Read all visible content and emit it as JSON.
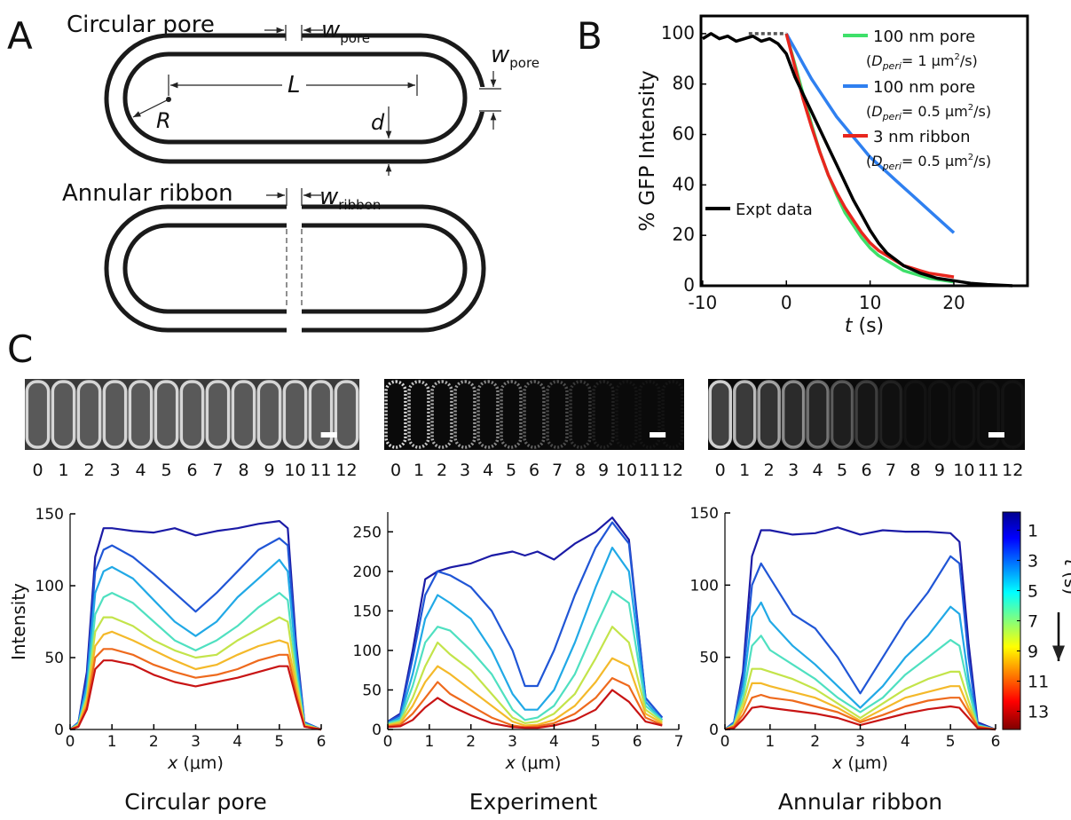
{
  "panels": [
    "A",
    "B",
    "C"
  ],
  "diagram": {
    "circular_title": "Circular pore",
    "ribbon_title": "Annular ribbon",
    "w": "w",
    "pore": "pore",
    "ribbon": "ribbon",
    "L": "L",
    "R": "R",
    "d": "d"
  },
  "image_strips": [
    {
      "labels": [
        "0",
        "1",
        "2",
        "3",
        "4",
        "5",
        "6",
        "7",
        "8",
        "9",
        "10",
        "11",
        "12"
      ]
    },
    {
      "labels": [
        "0",
        "1",
        "2",
        "3",
        "4",
        "5",
        "6",
        "7",
        "8",
        "9",
        "10",
        "11",
        "12"
      ]
    },
    {
      "labels": [
        "0",
        "1",
        "2",
        "3",
        "4",
        "5",
        "6",
        "7",
        "8",
        "9",
        "10",
        "11",
        "12"
      ]
    }
  ],
  "chart_data": [
    {
      "type": "line",
      "ylabel": "% GFP Intensity",
      "xlabel": [
        "t",
        " (s)"
      ],
      "xlim": [
        -10.2,
        28.8
      ],
      "ylim": [
        0,
        107
      ],
      "xticks": [
        -10,
        0,
        10,
        20
      ],
      "yticks": [
        0,
        20,
        40,
        60,
        80,
        100
      ],
      "series": [
        {
          "name": "100 nm pore",
          "note": [
            "(",
            "D",
            "peri",
            "= 1 μm",
            "2",
            "/s)"
          ],
          "color": "#3ee06a",
          "x": [
            0,
            1,
            2,
            3,
            4,
            5,
            6,
            7,
            8,
            9,
            10,
            11,
            12,
            13,
            14,
            15,
            16,
            17,
            18,
            19,
            20
          ],
          "values": [
            100,
            88,
            76,
            64,
            53,
            44,
            36,
            29,
            24,
            19,
            15,
            12,
            10,
            8,
            6,
            5,
            4,
            3,
            2.5,
            2,
            1.5
          ]
        },
        {
          "name": "100 nm pore",
          "note": [
            "(",
            "D",
            "peri",
            "= 0.5 μm",
            "2",
            "/s)"
          ],
          "color": "#2f80f0",
          "x": [
            0,
            1,
            2,
            3,
            4,
            5,
            6,
            7,
            8,
            9,
            10,
            11,
            12,
            13,
            14,
            15,
            16,
            17,
            18,
            19,
            20
          ],
          "values": [
            100,
            94,
            88,
            82,
            77,
            72,
            67,
            63,
            59,
            55,
            51,
            48,
            45,
            42,
            39,
            36,
            33,
            30,
            27,
            24,
            21
          ]
        },
        {
          "name": "3 nm ribbon",
          "note": [
            "(",
            "D",
            "peri",
            "= 0.5 μm",
            "2",
            "/s)"
          ],
          "color": "#e8261e",
          "x": [
            0,
            1,
            2,
            3,
            4,
            5,
            6,
            7,
            8,
            9,
            10,
            11,
            12,
            13,
            14,
            15,
            16,
            17,
            18,
            19,
            20
          ],
          "values": [
            100,
            87,
            74,
            63,
            53,
            44,
            37,
            31,
            26,
            21,
            17,
            14,
            12,
            10,
            8,
            7,
            6,
            5,
            4.5,
            4,
            3.5
          ]
        },
        {
          "name": "Expt data",
          "color": "#000000",
          "x": [
            -10,
            -9,
            -8,
            -7,
            -6,
            -5,
            -4,
            -3,
            -2,
            -1,
            0,
            1,
            2,
            3,
            4,
            5,
            6,
            7,
            8,
            9,
            10,
            11,
            12,
            14,
            16,
            18,
            20,
            22,
            24,
            27
          ],
          "values": [
            98,
            100,
            98,
            99,
            97,
            98,
            99,
            97,
            98,
            96,
            92,
            83,
            76,
            69,
            62,
            55,
            48,
            41,
            34,
            28,
            22,
            17,
            13,
            8,
            5,
            3,
            2,
            1,
            0.5,
            0
          ]
        },
        {
          "color": "#555555",
          "dash": true,
          "x": [
            -4.5,
            0
          ],
          "values": [
            100,
            100
          ]
        }
      ]
    },
    {
      "type": "line",
      "ylabel": "Intensity",
      "xlabel": [
        "x",
        " (μm)"
      ],
      "caption": "Circular pore",
      "xlim": [
        0,
        6
      ],
      "ylim": [
        0,
        150
      ],
      "xticks": [
        0,
        1,
        2,
        3,
        4,
        5,
        6
      ],
      "yticks": [
        0,
        50,
        100,
        150
      ],
      "x": [
        0,
        0.2,
        0.4,
        0.6,
        0.8,
        1,
        1.5,
        2,
        2.5,
        3,
        3.5,
        4,
        4.5,
        5,
        5.2,
        5.4,
        5.6,
        6
      ],
      "series": [
        {
          "color": "#1b1ba6",
          "values": [
            0,
            5,
            40,
            120,
            140,
            140,
            138,
            137,
            140,
            135,
            138,
            140,
            143,
            145,
            140,
            60,
            5,
            0
          ]
        },
        {
          "color": "#2056d6",
          "values": [
            0,
            5,
            35,
            110,
            125,
            128,
            120,
            108,
            95,
            82,
            95,
            110,
            125,
            133,
            128,
            55,
            5,
            0
          ]
        },
        {
          "color": "#21a9e6",
          "values": [
            0,
            4,
            30,
            95,
            110,
            113,
            105,
            90,
            75,
            65,
            75,
            92,
            105,
            118,
            110,
            48,
            4,
            0
          ]
        },
        {
          "color": "#4fe0c0",
          "values": [
            0,
            4,
            25,
            80,
            92,
            95,
            88,
            75,
            62,
            55,
            62,
            72,
            85,
            95,
            90,
            40,
            4,
            0
          ]
        },
        {
          "color": "#c3e44a",
          "values": [
            0,
            3,
            22,
            68,
            78,
            78,
            72,
            62,
            55,
            50,
            52,
            62,
            70,
            78,
            75,
            35,
            3,
            0
          ]
        },
        {
          "color": "#f4b92a",
          "values": [
            0,
            3,
            20,
            58,
            66,
            68,
            62,
            55,
            48,
            42,
            45,
            52,
            58,
            62,
            60,
            30,
            3,
            0
          ]
        },
        {
          "color": "#ee6a1d",
          "values": [
            0,
            2,
            16,
            50,
            56,
            56,
            52,
            45,
            40,
            36,
            38,
            42,
            48,
            52,
            52,
            25,
            2,
            0
          ]
        },
        {
          "color": "#c81414",
          "values": [
            0,
            2,
            14,
            42,
            48,
            48,
            45,
            38,
            33,
            30,
            33,
            36,
            40,
            44,
            44,
            22,
            2,
            0
          ]
        }
      ]
    },
    {
      "type": "line",
      "xlabel": [
        "x",
        " (μm)"
      ],
      "caption": "Experiment",
      "xlim": [
        0,
        7
      ],
      "ylim": [
        0,
        275
      ],
      "xticks": [
        0,
        1,
        2,
        3,
        4,
        5,
        6,
        7
      ],
      "yticks": [
        0,
        50,
        100,
        150,
        200,
        250
      ],
      "x": [
        0,
        0.3,
        0.6,
        0.9,
        1.2,
        1.5,
        2,
        2.5,
        3,
        3.3,
        3.6,
        4,
        4.5,
        5,
        5.4,
        5.8,
        6.2,
        6.6
      ],
      "series": [
        {
          "color": "#1b1ba6",
          "values": [
            10,
            20,
            100,
            190,
            200,
            205,
            210,
            220,
            225,
            220,
            225,
            215,
            235,
            250,
            268,
            240,
            40,
            15
          ]
        },
        {
          "color": "#2056d6",
          "values": [
            10,
            18,
            90,
            170,
            200,
            195,
            180,
            150,
            100,
            55,
            55,
            100,
            170,
            230,
            262,
            235,
            40,
            15
          ]
        },
        {
          "color": "#21a9e6",
          "values": [
            8,
            15,
            70,
            140,
            170,
            160,
            140,
            100,
            45,
            25,
            25,
            50,
            110,
            180,
            230,
            200,
            35,
            12
          ]
        },
        {
          "color": "#4fe0c0",
          "values": [
            8,
            12,
            55,
            110,
            130,
            125,
            100,
            70,
            25,
            12,
            15,
            30,
            70,
            130,
            175,
            160,
            30,
            12
          ]
        },
        {
          "color": "#c3e44a",
          "values": [
            6,
            10,
            40,
            80,
            110,
            95,
            75,
            45,
            15,
            8,
            10,
            20,
            45,
            90,
            130,
            110,
            25,
            10
          ]
        },
        {
          "color": "#f4b92a",
          "values": [
            5,
            8,
            30,
            60,
            80,
            70,
            50,
            30,
            10,
            5,
            6,
            12,
            30,
            60,
            90,
            80,
            20,
            8
          ]
        },
        {
          "color": "#ee6a1d",
          "values": [
            4,
            6,
            20,
            40,
            60,
            45,
            30,
            15,
            5,
            3,
            4,
            8,
            20,
            40,
            65,
            55,
            15,
            6
          ]
        },
        {
          "color": "#c81414",
          "values": [
            3,
            4,
            12,
            28,
            40,
            30,
            18,
            8,
            3,
            2,
            2,
            5,
            12,
            25,
            50,
            35,
            10,
            5
          ]
        }
      ]
    },
    {
      "type": "line",
      "xlabel": [
        "x",
        " (μm)"
      ],
      "caption": "Annular ribbon",
      "xlim": [
        0,
        6
      ],
      "ylim": [
        0,
        150
      ],
      "xticks": [
        0,
        1,
        2,
        3,
        4,
        5,
        6
      ],
      "yticks": [
        0,
        50,
        100,
        150
      ],
      "x": [
        0,
        0.2,
        0.4,
        0.6,
        0.8,
        1,
        1.5,
        2,
        2.5,
        3,
        3.5,
        4,
        4.5,
        5,
        5.2,
        5.4,
        5.6,
        6
      ],
      "colorbar": {
        "label": [
          "t",
          " (s)"
        ],
        "lim": [
          -0.2,
          14.2
        ],
        "ticks": [
          1,
          3,
          5,
          7,
          9,
          11,
          13
        ]
      },
      "series": [
        {
          "color": "#1b1ba6",
          "values": [
            0,
            5,
            40,
            120,
            138,
            138,
            135,
            136,
            140,
            135,
            138,
            137,
            137,
            136,
            130,
            60,
            5,
            0
          ]
        },
        {
          "color": "#2056d6",
          "values": [
            0,
            5,
            35,
            100,
            115,
            105,
            80,
            70,
            50,
            25,
            50,
            75,
            95,
            120,
            115,
            50,
            4,
            0
          ]
        },
        {
          "color": "#21a9e6",
          "values": [
            0,
            4,
            28,
            78,
            88,
            75,
            58,
            45,
            30,
            15,
            30,
            50,
            65,
            85,
            80,
            35,
            3,
            0
          ]
        },
        {
          "color": "#4fe0c0",
          "values": [
            0,
            3,
            22,
            58,
            65,
            55,
            45,
            35,
            22,
            12,
            22,
            38,
            50,
            62,
            58,
            28,
            3,
            0
          ]
        },
        {
          "color": "#c3e44a",
          "values": [
            0,
            3,
            18,
            42,
            42,
            40,
            35,
            28,
            18,
            8,
            18,
            28,
            35,
            40,
            40,
            20,
            2,
            0
          ]
        },
        {
          "color": "#f4b92a",
          "values": [
            0,
            2,
            14,
            32,
            32,
            30,
            26,
            22,
            15,
            6,
            14,
            22,
            26,
            30,
            30,
            15,
            2,
            0
          ]
        },
        {
          "color": "#ee6a1d",
          "values": [
            0,
            2,
            10,
            22,
            24,
            22,
            20,
            16,
            12,
            5,
            10,
            16,
            20,
            22,
            22,
            12,
            2,
            0
          ]
        },
        {
          "color": "#c81414",
          "values": [
            0,
            1,
            7,
            15,
            16,
            15,
            13,
            11,
            8,
            3,
            7,
            11,
            14,
            16,
            15,
            8,
            1,
            0
          ]
        }
      ]
    }
  ]
}
